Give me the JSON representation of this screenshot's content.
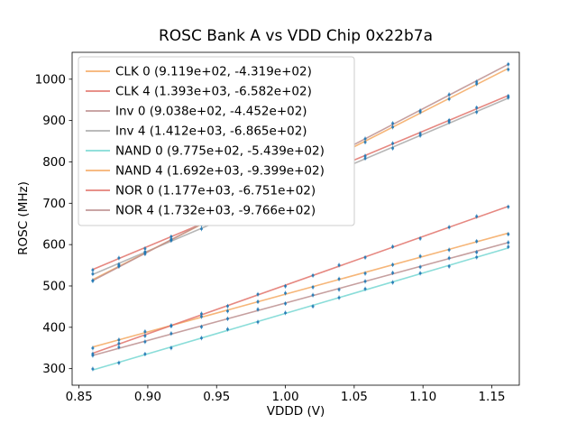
{
  "figure": {
    "title": "ROSC Bank A vs VDD Chip 0x22b7a",
    "xlabel": "VDDD (V)",
    "ylabel": "ROSC (MHz)"
  },
  "chart_data": {
    "type": "line",
    "title": "ROSC Bank A vs VDD Chip 0x22b7a",
    "xlabel": "VDDD (V)",
    "ylabel": "ROSC (MHz)",
    "xlim": [
      0.845,
      1.17
    ],
    "ylim": [
      260,
      1065
    ],
    "xticks": [
      0.85,
      0.9,
      0.95,
      1.0,
      1.05,
      1.1,
      1.15
    ],
    "xtick_labels": [
      "0.85",
      "0.90",
      "0.95",
      "1.00",
      "1.05",
      "1.10",
      "1.15"
    ],
    "yticks": [
      300,
      400,
      500,
      600,
      700,
      800,
      900,
      1000
    ],
    "ytick_labels": [
      "300",
      "400",
      "500",
      "600",
      "700",
      "800",
      "900",
      "1000"
    ],
    "grid": false,
    "legend_position": "upper left",
    "x_range": [
      0.86,
      1.162
    ],
    "x_points": [
      0.86,
      0.879,
      0.898,
      0.917,
      0.939,
      0.958,
      0.98,
      1.0,
      1.02,
      1.039,
      1.058,
      1.078,
      1.098,
      1.119,
      1.139,
      1.162
    ],
    "scatter_color": "#1f77b4",
    "series": [
      {
        "name": "CLK 0",
        "legend_label": "CLK 0 (9.119e+02, -4.319e+02)",
        "slope": 911.9,
        "intercept": -431.9,
        "color": "#f5a962"
      },
      {
        "name": "CLK 4",
        "legend_label": "CLK 4 (1.393e+03, -6.582e+02)",
        "slope": 1393.0,
        "intercept": -658.2,
        "color": "#e2736b"
      },
      {
        "name": "Inv 0",
        "legend_label": "Inv 0 (9.038e+02, -4.452e+02)",
        "slope": 903.8,
        "intercept": -445.2,
        "color": "#bc8f8f"
      },
      {
        "name": "Inv 4",
        "legend_label": "Inv 4 (1.412e+03, -6.865e+02)",
        "slope": 1412.0,
        "intercept": -686.5,
        "color": "#a9a9a9"
      },
      {
        "name": "NAND 0",
        "legend_label": "NAND 0 (9.775e+02, -5.439e+02)",
        "slope": 977.5,
        "intercept": -543.9,
        "color": "#76d7d2"
      },
      {
        "name": "NAND 4",
        "legend_label": "NAND 4 (1.692e+03, -9.399e+02)",
        "slope": 1692.0,
        "intercept": -939.9,
        "color": "#f5a962"
      },
      {
        "name": "NOR 0",
        "legend_label": "NOR 0 (1.177e+03, -6.751e+02)",
        "slope": 1177.0,
        "intercept": -675.1,
        "color": "#e2736b"
      },
      {
        "name": "NOR 4",
        "legend_label": "NOR 4 (1.732e+03, -9.766e+02)",
        "slope": 1732.0,
        "intercept": -976.6,
        "color": "#bc8f8f"
      }
    ]
  }
}
